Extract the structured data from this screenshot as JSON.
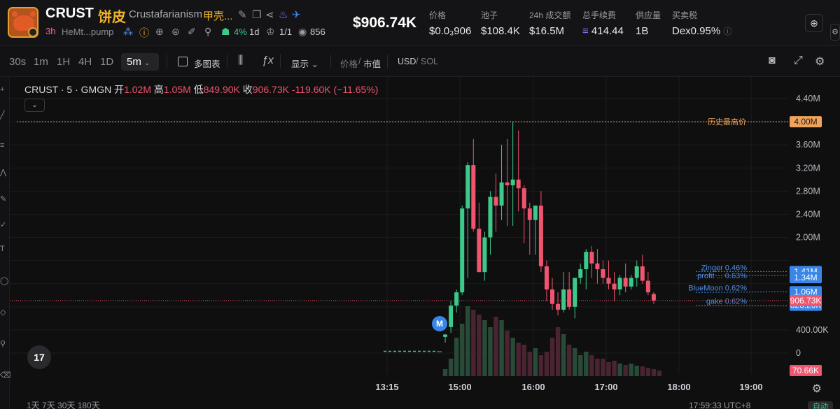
{
  "header": {
    "symbol": "CRUST",
    "symbol_cn": "饼皮",
    "name": "Crustafarianism",
    "name_cn": "甲壳...",
    "age": "3h",
    "address": "HeMt...pump",
    "top10_pct": "4%",
    "duration": "1d",
    "holders_ratio": "1/1",
    "views": "856",
    "price_big": "$906.74K",
    "stats": [
      {
        "label": "价格",
        "value": "$0.0₃906"
      },
      {
        "label": "池子",
        "value": "$108.4K"
      },
      {
        "label": "24h 成交额",
        "value": "$16.5M"
      },
      {
        "label": "总手续费",
        "value": "414.44"
      },
      {
        "label": "供应量",
        "value": "1B"
      },
      {
        "label": "买卖税",
        "value": "Dex0.95%"
      }
    ],
    "icons": [
      "edit-icon",
      "copy-icon",
      "share-icon",
      "flame-icon",
      "telegram-icon"
    ],
    "meta_icons": [
      "group-icon",
      "warning-icon",
      "globe-icon",
      "twitter-icon",
      "edit-icon",
      "search-icon",
      "chef-icon",
      "crown-icon",
      "eye-icon"
    ]
  },
  "toolbar": {
    "timeframes": [
      "30s",
      "1m",
      "1H",
      "4H",
      "1D"
    ],
    "active_timeframe": "5m",
    "multi_chart": "多图表",
    "display": "显示",
    "price_toggle": "价格",
    "mcap_toggle": "市值",
    "currency_usd": "USD",
    "currency_sol": "SOL"
  },
  "chart": {
    "legend": {
      "title": "CRUST · 5 · GMGN",
      "open_label": "开",
      "open": "1.02M",
      "high_label": "高",
      "high": "1.05M",
      "low_label": "低",
      "low": "849.90K",
      "close_label": "收",
      "close": "906.73K",
      "change": "-119.60K (−11.65%)"
    },
    "ath_label": "历史最高价",
    "ath_value": "4.00M",
    "current_price": "906.73K",
    "volume_label": "70.66K",
    "marker": "M",
    "tv_logo": "17",
    "bottom_left": "1天  7天  30天  180天",
    "bottom_right": "17:59:33 UTC+8",
    "bottom_btn": "自动",
    "levels": [
      {
        "label": "Zinger 0.46%",
        "value": "1.41M"
      },
      {
        "label": "profit ... 0.63%",
        "value": "1.34M"
      },
      {
        "label": "BlueMoon 0.62%",
        "value": "1.06M"
      },
      {
        "label": "gake 0.62%",
        "value": "826.20K"
      }
    ],
    "colors": {
      "up": "#3cc98a",
      "down": "#f0546e",
      "ath": "#f0a35b",
      "level": "#3a86e8"
    }
  },
  "chart_data": {
    "type": "candlestick",
    "title": "CRUST · 5 · GMGN",
    "x_ticks": [
      "13:15",
      "15:00",
      "16:00",
      "17:00",
      "18:00",
      "19:00"
    ],
    "y_ticks": [
      "4.40M",
      "3.60M",
      "3.20M",
      "2.80M",
      "2.40M",
      "2.00M",
      "400.00K",
      "0"
    ],
    "ylim": [
      0,
      4400000
    ],
    "candles": [
      {
        "t": "14:45",
        "o": 0.03,
        "h": 0.03,
        "l": 0.03,
        "c": 0.03
      },
      {
        "t": "14:50",
        "o": 0.28,
        "h": 0.33,
        "l": 0.18,
        "c": 0.32
      },
      {
        "t": "14:55",
        "o": 0.45,
        "h": 0.9,
        "l": 0.35,
        "c": 0.82
      },
      {
        "t": "15:00",
        "o": 0.82,
        "h": 1.1,
        "l": 0.7,
        "c": 1.05
      },
      {
        "t": "15:05",
        "o": 1.05,
        "h": 2.55,
        "l": 1.0,
        "c": 2.5
      },
      {
        "t": "15:10",
        "o": 2.5,
        "h": 3.3,
        "l": 1.3,
        "c": 3.25
      },
      {
        "t": "15:15",
        "o": 3.25,
        "h": 3.7,
        "l": 2.1,
        "c": 2.15
      },
      {
        "t": "15:20",
        "o": 2.15,
        "h": 2.6,
        "l": 1.4,
        "c": 1.4
      },
      {
        "t": "15:25",
        "o": 1.4,
        "h": 2.1,
        "l": 1.25,
        "c": 2.0
      },
      {
        "t": "15:30",
        "o": 2.0,
        "h": 2.8,
        "l": 1.7,
        "c": 2.7
      },
      {
        "t": "15:35",
        "o": 2.7,
        "h": 3.1,
        "l": 2.1,
        "c": 2.55
      },
      {
        "t": "15:40",
        "o": 2.55,
        "h": 3.6,
        "l": 2.3,
        "c": 2.95
      },
      {
        "t": "15:45",
        "o": 2.95,
        "h": 3.7,
        "l": 2.2,
        "c": 2.9
      },
      {
        "t": "15:50",
        "o": 2.9,
        "h": 4.0,
        "l": 2.2,
        "c": 3.0
      },
      {
        "t": "15:55",
        "o": 3.0,
        "h": 3.85,
        "l": 2.45,
        "c": 2.85
      },
      {
        "t": "16:00",
        "o": 2.85,
        "h": 2.9,
        "l": 1.9,
        "c": 2.5
      },
      {
        "t": "16:05",
        "o": 2.5,
        "h": 2.6,
        "l": 1.7,
        "c": 2.3
      },
      {
        "t": "16:10",
        "o": 2.3,
        "h": 2.55,
        "l": 1.7,
        "c": 2.55
      },
      {
        "t": "16:15",
        "o": 2.55,
        "h": 2.8,
        "l": 1.4,
        "c": 1.5
      },
      {
        "t": "16:20",
        "o": 1.5,
        "h": 1.6,
        "l": 0.9,
        "c": 1.1
      },
      {
        "t": "16:25",
        "o": 1.1,
        "h": 1.3,
        "l": 0.75,
        "c": 0.85
      },
      {
        "t": "16:30",
        "o": 0.85,
        "h": 1.05,
        "l": 0.65,
        "c": 0.75
      },
      {
        "t": "16:35",
        "o": 0.75,
        "h": 1.4,
        "l": 0.7,
        "c": 1.1
      },
      {
        "t": "16:40",
        "o": 1.1,
        "h": 1.4,
        "l": 0.75,
        "c": 0.8
      },
      {
        "t": "16:45",
        "o": 0.8,
        "h": 1.25,
        "l": 0.6,
        "c": 1.3
      },
      {
        "t": "16:50",
        "o": 1.3,
        "h": 1.55,
        "l": 1.2,
        "c": 1.45
      },
      {
        "t": "16:55",
        "o": 1.45,
        "h": 1.8,
        "l": 1.1,
        "c": 1.75
      },
      {
        "t": "17:00",
        "o": 1.75,
        "h": 1.85,
        "l": 1.3,
        "c": 1.55
      },
      {
        "t": "17:05",
        "o": 1.55,
        "h": 1.8,
        "l": 1.2,
        "c": 1.45
      },
      {
        "t": "17:10",
        "o": 1.45,
        "h": 1.6,
        "l": 1.2,
        "c": 1.3
      },
      {
        "t": "17:15",
        "o": 1.3,
        "h": 1.6,
        "l": 1.1,
        "c": 1.2
      },
      {
        "t": "17:20",
        "o": 1.2,
        "h": 1.4,
        "l": 0.9,
        "c": 1.1
      },
      {
        "t": "17:25",
        "o": 1.1,
        "h": 1.35,
        "l": 1.0,
        "c": 1.3
      },
      {
        "t": "17:30",
        "o": 1.3,
        "h": 1.55,
        "l": 1.05,
        "c": 1.15
      },
      {
        "t": "17:35",
        "o": 1.15,
        "h": 1.35,
        "l": 1.1,
        "c": 1.3
      },
      {
        "t": "17:40",
        "o": 1.3,
        "h": 1.6,
        "l": 1.15,
        "c": 1.5
      },
      {
        "t": "17:45",
        "o": 1.5,
        "h": 1.7,
        "l": 1.2,
        "c": 1.25
      },
      {
        "t": "17:50",
        "o": 1.25,
        "h": 1.4,
        "l": 1.0,
        "c": 1.05
      },
      {
        "t": "17:55",
        "o": 1.02,
        "h": 1.05,
        "l": 0.85,
        "c": 0.91
      }
    ],
    "volume": [
      0.1,
      0.25,
      0.55,
      0.75,
      1.0,
      0.95,
      0.88,
      0.8,
      0.7,
      0.85,
      0.8,
      0.65,
      0.55,
      0.48,
      0.45,
      0.35,
      0.4,
      0.3,
      0.35,
      0.55,
      0.7,
      0.6,
      0.45,
      0.4,
      0.3,
      0.35,
      0.3,
      0.25,
      0.25,
      0.2,
      0.22,
      0.18,
      0.16,
      0.18,
      0.15,
      0.14,
      0.12,
      0.1,
      0.08
    ]
  }
}
